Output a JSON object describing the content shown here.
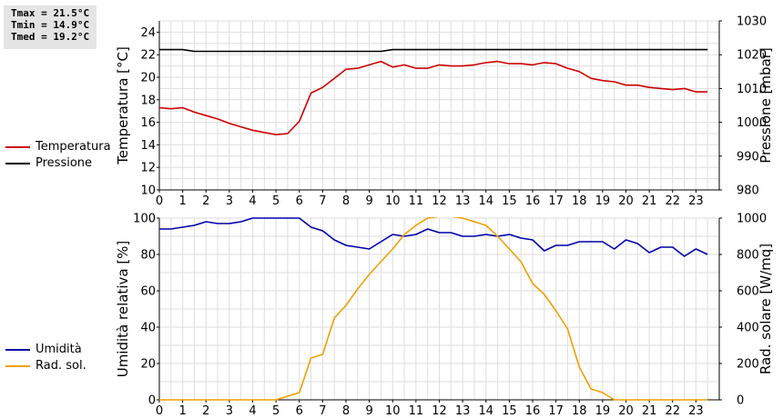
{
  "stats": {
    "tmax": "Tmax = 21.5°C",
    "tmin": "Tmin = 14.9°C",
    "tmed": "Tmed = 19.2°C"
  },
  "colors": {
    "temperature": "#cc0000",
    "pressure": "#000000",
    "humidity": "#0000aa",
    "radiation": "#f0a000"
  },
  "chart_data": [
    {
      "type": "line",
      "ylabel": "Temperatura [°C]",
      "y2label": "Pressione [mbar]",
      "xlim": [
        0,
        24
      ],
      "x_ticks": [
        "0",
        "1",
        "2",
        "3",
        "4",
        "5",
        "6",
        "7",
        "8",
        "9",
        "10",
        "11",
        "12",
        "13",
        "14",
        "15",
        "16",
        "17",
        "18",
        "19",
        "20",
        "21",
        "22",
        "23"
      ],
      "ylim": [
        10,
        25
      ],
      "y_ticks": [
        "10",
        "12",
        "14",
        "16",
        "18",
        "20",
        "22",
        "24"
      ],
      "y2lim": [
        980,
        1030
      ],
      "y2_ticks": [
        "980",
        "990",
        "1000",
        "1010",
        "1020",
        "1030"
      ],
      "grid": true,
      "legend_position": "left",
      "series": [
        {
          "name": "Temperatura",
          "axis": "left",
          "color": "#cc0000",
          "points": [
            [
              0,
              17.3
            ],
            [
              0.5,
              17.2
            ],
            [
              1,
              17.3
            ],
            [
              1.5,
              16.9
            ],
            [
              2,
              16.6
            ],
            [
              2.5,
              16.3
            ],
            [
              3,
              15.9
            ],
            [
              3.5,
              15.6
            ],
            [
              4,
              15.3
            ],
            [
              4.5,
              15.1
            ],
            [
              5,
              14.9
            ],
            [
              5.5,
              15.0
            ],
            [
              6,
              16.1
            ],
            [
              6.5,
              18.6
            ],
            [
              7,
              19.1
            ],
            [
              7.5,
              19.9
            ],
            [
              8,
              20.7
            ],
            [
              8.5,
              20.8
            ],
            [
              9,
              21.1
            ],
            [
              9.5,
              21.4
            ],
            [
              10,
              20.9
            ],
            [
              10.5,
              21.1
            ],
            [
              11,
              20.8
            ],
            [
              11.5,
              20.8
            ],
            [
              12,
              21.1
            ],
            [
              12.5,
              21.0
            ],
            [
              13,
              21.0
            ],
            [
              13.5,
              21.1
            ],
            [
              14,
              21.3
            ],
            [
              14.5,
              21.4
            ],
            [
              15,
              21.2
            ],
            [
              15.5,
              21.2
            ],
            [
              16,
              21.1
            ],
            [
              16.5,
              21.3
            ],
            [
              17,
              21.2
            ],
            [
              17.5,
              20.8
            ],
            [
              18,
              20.5
            ],
            [
              18.5,
              19.9
            ],
            [
              19,
              19.7
            ],
            [
              19.5,
              19.6
            ],
            [
              20,
              19.3
            ],
            [
              20.5,
              19.3
            ],
            [
              21,
              19.1
            ],
            [
              21.5,
              19.0
            ],
            [
              22,
              18.9
            ],
            [
              22.5,
              19.0
            ],
            [
              23,
              18.7
            ],
            [
              23.5,
              18.7
            ]
          ]
        },
        {
          "name": "Pressione",
          "axis": "right",
          "color": "#000000",
          "points": [
            [
              0,
              1021.5
            ],
            [
              1,
              1021.5
            ],
            [
              1.5,
              1021
            ],
            [
              9.5,
              1021
            ],
            [
              10,
              1021.5
            ],
            [
              23.5,
              1021.5
            ]
          ]
        }
      ]
    },
    {
      "type": "line",
      "ylabel": "Umidità relativa [%]",
      "y2label": "Rad. solare [W/mq]",
      "xlim": [
        0,
        24
      ],
      "x_ticks": [
        "0",
        "1",
        "2",
        "3",
        "4",
        "5",
        "6",
        "7",
        "8",
        "9",
        "10",
        "11",
        "12",
        "13",
        "14",
        "15",
        "16",
        "17",
        "18",
        "19",
        "20",
        "21",
        "22",
        "23"
      ],
      "ylim": [
        0,
        100
      ],
      "y_ticks": [
        "0",
        "20",
        "40",
        "60",
        "80",
        "100"
      ],
      "y2lim": [
        0,
        1000
      ],
      "y2_ticks": [
        "0",
        "200",
        "400",
        "600",
        "800",
        "1000"
      ],
      "grid": true,
      "legend_position": "left",
      "series": [
        {
          "name": "Umidità",
          "axis": "left",
          "color": "#0000aa",
          "points": [
            [
              0,
              94
            ],
            [
              0.5,
              94
            ],
            [
              1,
              95
            ],
            [
              1.5,
              96
            ],
            [
              2,
              98
            ],
            [
              2.5,
              97
            ],
            [
              3,
              97
            ],
            [
              3.5,
              98
            ],
            [
              4,
              100
            ],
            [
              4.5,
              100
            ],
            [
              5,
              100
            ],
            [
              5.5,
              100
            ],
            [
              6,
              100
            ],
            [
              6.5,
              95
            ],
            [
              7,
              93
            ],
            [
              7.5,
              88
            ],
            [
              8,
              85
            ],
            [
              8.5,
              84
            ],
            [
              9,
              83
            ],
            [
              9.5,
              87
            ],
            [
              10,
              91
            ],
            [
              10.5,
              90
            ],
            [
              11,
              91
            ],
            [
              11.5,
              94
            ],
            [
              12,
              92
            ],
            [
              12.5,
              92
            ],
            [
              13,
              90
            ],
            [
              13.5,
              90
            ],
            [
              14,
              91
            ],
            [
              14.5,
              90
            ],
            [
              15,
              91
            ],
            [
              15.5,
              89
            ],
            [
              16,
              88
            ],
            [
              16.5,
              82
            ],
            [
              17,
              85
            ],
            [
              17.5,
              85
            ],
            [
              18,
              87
            ],
            [
              18.5,
              87
            ],
            [
              19,
              87
            ],
            [
              19.5,
              83
            ],
            [
              20,
              88
            ],
            [
              20.5,
              86
            ],
            [
              21,
              81
            ],
            [
              21.5,
              84
            ],
            [
              22,
              84
            ],
            [
              22.5,
              79
            ],
            [
              23,
              83
            ],
            [
              23.5,
              80
            ]
          ]
        },
        {
          "name": "Rad. sol.",
          "axis": "right",
          "color": "#f0a000",
          "points": [
            [
              0,
              0
            ],
            [
              5,
              0
            ],
            [
              5.5,
              20
            ],
            [
              6,
              40
            ],
            [
              6.5,
              230
            ],
            [
              7,
              250
            ],
            [
              7.5,
              450
            ],
            [
              8,
              520
            ],
            [
              8.5,
              610
            ],
            [
              9,
              690
            ],
            [
              9.5,
              760
            ],
            [
              10,
              830
            ],
            [
              10.5,
              910
            ],
            [
              11,
              960
            ],
            [
              11.5,
              1000
            ],
            [
              12,
              1010
            ],
            [
              12.5,
              1010
            ],
            [
              13,
              1000
            ],
            [
              13.5,
              980
            ],
            [
              14,
              960
            ],
            [
              14.5,
              900
            ],
            [
              15,
              830
            ],
            [
              15.5,
              760
            ],
            [
              16,
              640
            ],
            [
              16.5,
              580
            ],
            [
              17,
              490
            ],
            [
              17.5,
              390
            ],
            [
              18,
              180
            ],
            [
              18.5,
              60
            ],
            [
              19,
              40
            ],
            [
              19.5,
              0
            ],
            [
              23.5,
              0
            ]
          ]
        }
      ]
    }
  ]
}
